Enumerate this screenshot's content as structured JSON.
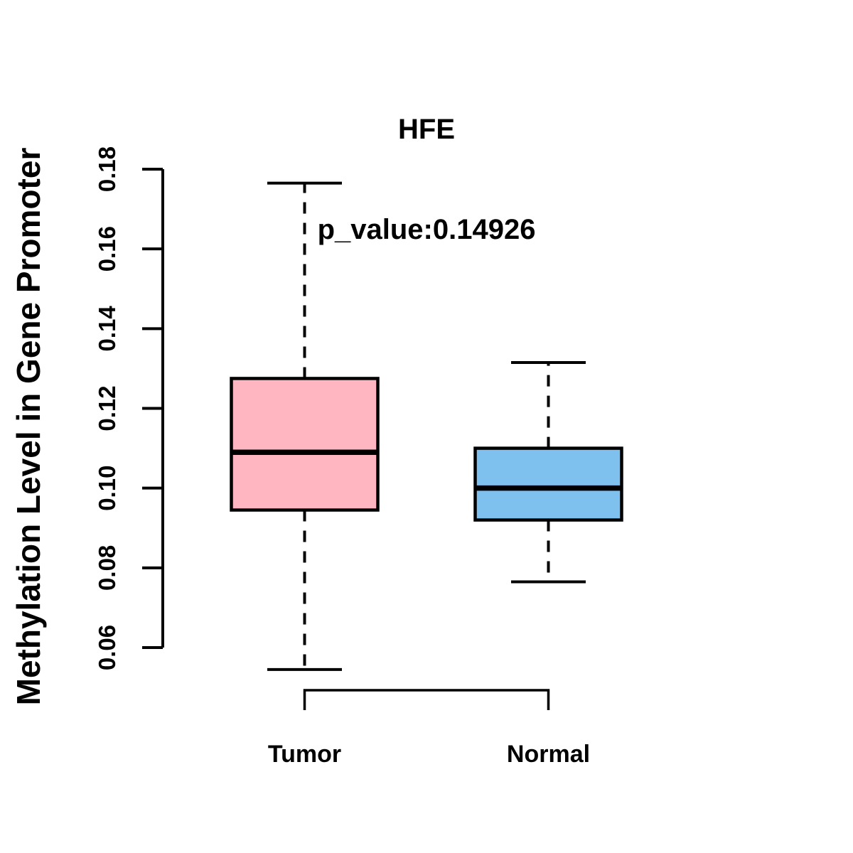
{
  "title": "HFE",
  "subtitle": "p_value:0.14926",
  "chart_data": {
    "type": "boxplot",
    "title": "HFE",
    "subtitle": "p_value:0.14926",
    "xlabel": "",
    "ylabel": "Methylation Level in Gene Promoter",
    "ylim": [
      0.06,
      0.18
    ],
    "yticks": [
      0.06,
      0.08,
      0.1,
      0.12,
      0.14,
      0.16,
      0.18
    ],
    "ytick_labels": [
      "0.06",
      "0.08",
      "0.10",
      "0.12",
      "0.14",
      "0.16",
      "0.18"
    ],
    "grid": false,
    "legend": "none",
    "whisker_style": "dashed",
    "groups": [
      {
        "label": "Tumor",
        "fill": "#FFB6C1",
        "whisker_low": 0.0545,
        "q1": 0.0945,
        "median": 0.109,
        "q3": 0.1275,
        "whisker_high": 0.1765,
        "outliers": []
      },
      {
        "label": "Normal",
        "fill": "#7EC0EE",
        "whisker_low": 0.0765,
        "q1": 0.092,
        "median": 0.1,
        "q3": 0.11,
        "whisker_high": 0.1315,
        "outliers": []
      }
    ],
    "comparison_bracket": {
      "from": "Tumor",
      "to": "Normal"
    },
    "colors": {
      "stroke": "#000000",
      "background": "#FFFFFF"
    }
  }
}
